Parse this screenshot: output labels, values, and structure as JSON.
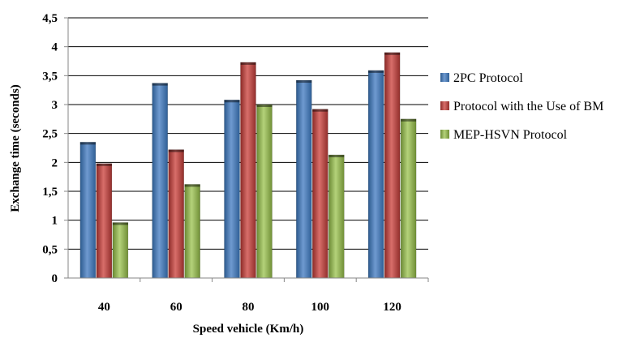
{
  "chart_data": {
    "type": "bar",
    "title": "",
    "xlabel": "Speed vehicle (Km/h)",
    "ylabel": "Exchange time (seconds)",
    "categories": [
      "40",
      "60",
      "80",
      "100",
      "120"
    ],
    "series": [
      {
        "name": "2PC Protocol",
        "values": [
          2.35,
          3.37,
          3.08,
          3.42,
          3.59
        ],
        "color": "#4f81bd"
      },
      {
        "name": "Protocol with the Use of  BM",
        "values": [
          1.98,
          2.22,
          3.73,
          2.92,
          3.9
        ],
        "color": "#c0504d"
      },
      {
        "name": "MEP-HSVN Protocol",
        "values": [
          0.96,
          1.62,
          3.0,
          2.13,
          2.75
        ],
        "color": "#9bbb59"
      }
    ],
    "ylim": [
      0,
      4.5
    ],
    "yticks": [
      "0",
      "0,5",
      "1",
      "1,5",
      "2",
      "2,5",
      "3",
      "3,5",
      "4",
      "4,5"
    ],
    "grid": true,
    "legend_position": "right"
  }
}
